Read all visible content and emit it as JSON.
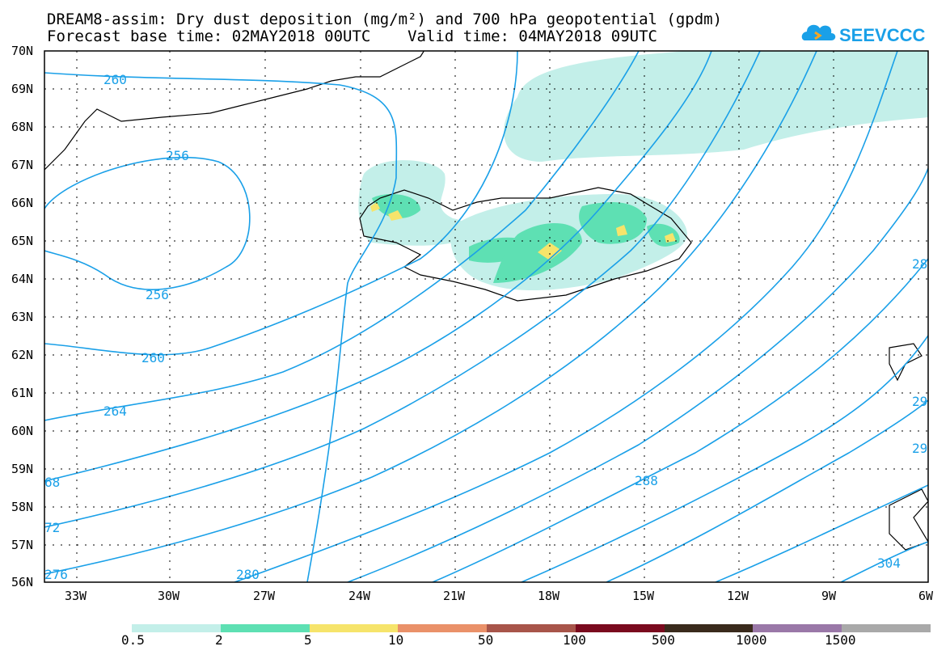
{
  "title": {
    "line1": "DREAM8-assim: Dry dust deposition (mg/m²) and 700 hPa geopotential (gpdm)",
    "line2": "Forecast base time: 02MAY2018 00UTC    Valid time: 04MAY2018 09UTC"
  },
  "logo": {
    "text": "SEEVCCC",
    "color": "#1aa0e8"
  },
  "map": {
    "lat_labels": [
      "70N",
      "69N",
      "68N",
      "67N",
      "66N",
      "65N",
      "64N",
      "63N",
      "62N",
      "61N",
      "60N",
      "59N",
      "58N",
      "57N",
      "56N"
    ],
    "lon_labels": [
      "33W",
      "30W",
      "27W",
      "24W",
      "21W",
      "18W",
      "15W",
      "12W",
      "9W",
      "6W"
    ],
    "contour_labels": [
      "260",
      "256",
      "256",
      "260",
      "264",
      "68",
      "72",
      "276",
      "280",
      "288",
      "304",
      "28",
      "29",
      "29"
    ],
    "contour_color": "#1aa0e8"
  },
  "legend": {
    "colors": [
      "#c3efe9",
      "#5ee0b3",
      "#f6e46b",
      "#ea9169",
      "#a8554a",
      "#7a0a1e",
      "#3a2a1c",
      "#9a78a8",
      "#a9a9a9"
    ],
    "labels": [
      "0.5",
      "2",
      "5",
      "10",
      "50",
      "100",
      "500",
      "1000",
      "1500"
    ]
  }
}
